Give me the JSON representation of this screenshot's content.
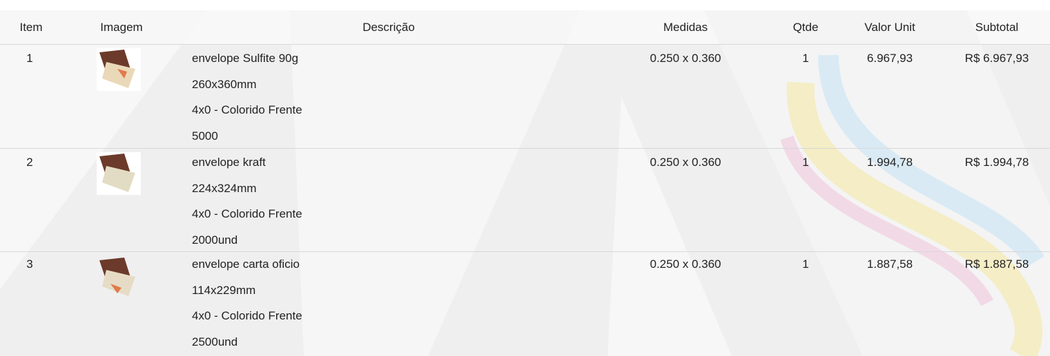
{
  "table": {
    "header": [
      "Item",
      "Imagem",
      "Descrição",
      "Medidas",
      "Qtde",
      "Valor Unit",
      "Subtotal"
    ],
    "rows": [
      {
        "item": "1",
        "description": [
          "envelope Sulfite 90g",
          "260x360mm",
          "4x0 - Colorido Frente",
          "5000"
        ],
        "medidas": "0.250 x 0.360",
        "qtde": "1",
        "valor_unit": "6.967,93",
        "subtotal": "R$ 6.967,93"
      },
      {
        "item": "2",
        "description": [
          "envelope kraft",
          "224x324mm",
          "4x0 - Colorido Frente",
          "2000und"
        ],
        "medidas": "0.250 x 0.360",
        "qtde": "1",
        "valor_unit": "1.994,78",
        "subtotal": "R$ 1.994,78"
      },
      {
        "item": "3",
        "description": [
          "envelope carta oficio",
          "114x229mm",
          "4x0 - Colorido Frente",
          "2500und"
        ],
        "medidas": "0.250 x 0.360",
        "qtde": "1",
        "valor_unit": "1.887,58",
        "subtotal": "R$ 1.887,58"
      }
    ]
  }
}
